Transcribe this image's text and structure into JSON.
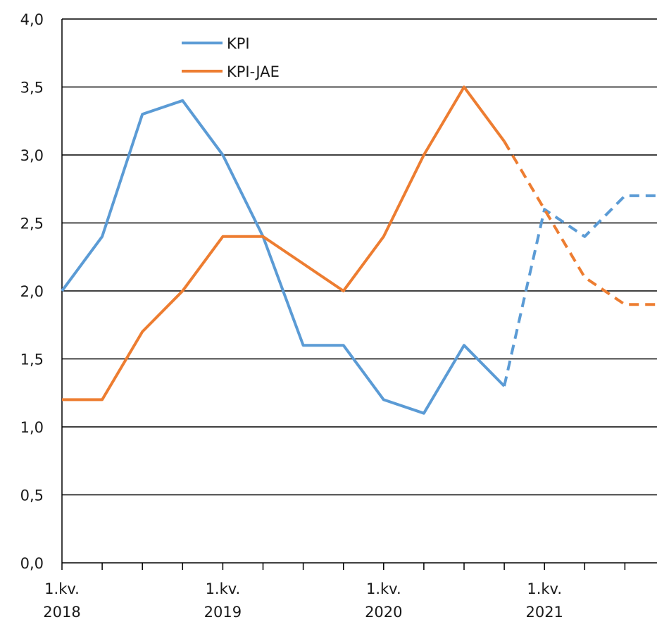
{
  "chart_data": {
    "type": "line",
    "title": "",
    "xlabel": "",
    "ylabel": "",
    "ylim": [
      0,
      4
    ],
    "yticks": [
      "0,0",
      "0,5",
      "1,0",
      "1,5",
      "2,0",
      "2,5",
      "3,0",
      "3,5",
      "4,0"
    ],
    "grid": true,
    "legend_position": "top-left",
    "x": [
      "Q1 2018",
      "Q2 2018",
      "Q3 2018",
      "Q4 2018",
      "Q1 2019",
      "Q2 2019",
      "Q3 2019",
      "Q4 2019",
      "Q1 2020",
      "Q2 2020",
      "Q3 2020",
      "Q4 2020",
      "Q1 2021",
      "Q2 2021",
      "Q3 2021",
      "Q4 2021"
    ],
    "xtick_labels": [
      {
        "quarter": "1.kv.",
        "year": "2018"
      },
      {
        "quarter": "1.kv.",
        "year": "2019"
      },
      {
        "quarter": "1.kv.",
        "year": "2020"
      },
      {
        "quarter": "1.kv.",
        "year": "2021"
      }
    ],
    "forecast_start": "Q4 2020",
    "series": [
      {
        "name": "KPI",
        "color": "#5b9bd5",
        "values": [
          2.0,
          2.4,
          3.3,
          3.4,
          3.0,
          2.4,
          1.6,
          1.6,
          1.2,
          1.1,
          1.6,
          1.3,
          2.6,
          2.4,
          2.7,
          2.7
        ]
      },
      {
        "name": "KPI-JAE",
        "color": "#ed7d31",
        "values": [
          1.2,
          1.2,
          1.7,
          2.0,
          2.4,
          2.4,
          2.2,
          2.0,
          2.4,
          3.0,
          3.5,
          3.1,
          2.6,
          2.1,
          1.9,
          1.9
        ]
      }
    ]
  }
}
